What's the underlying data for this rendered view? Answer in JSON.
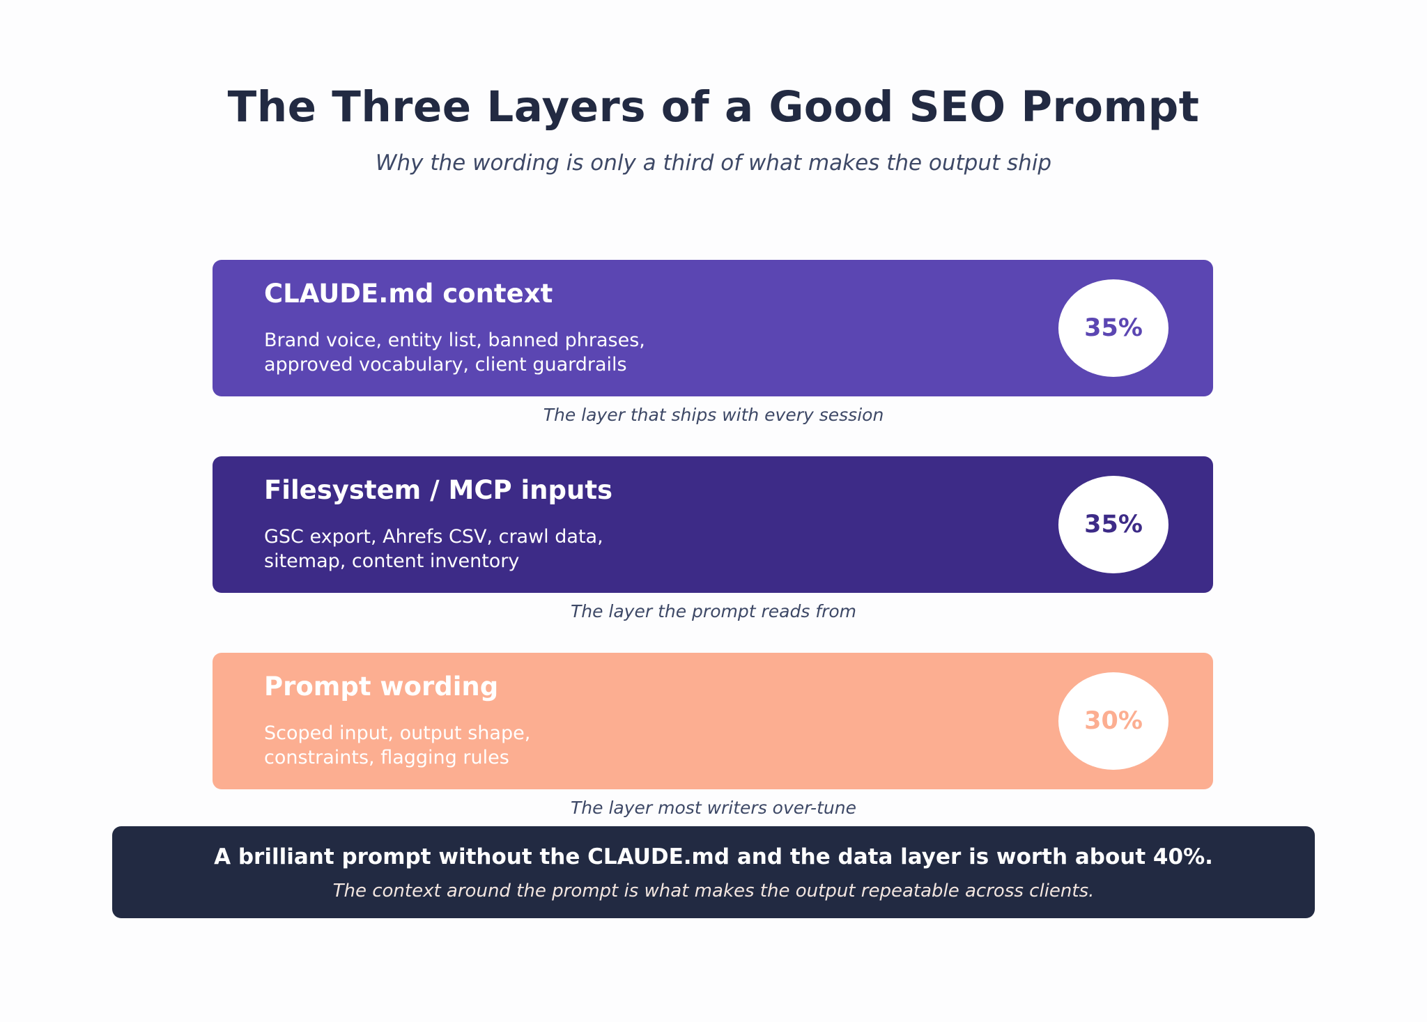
{
  "header": {
    "title": "The Three Layers of a Good SEO Prompt",
    "subtitle": "Why the wording is only a third of what makes the output ship"
  },
  "layers": [
    {
      "name": "CLAUDE.md context",
      "desc_line1": "Brand voice, entity list, banned phrases,",
      "desc_line2": "approved vocabulary, client guardrails",
      "percent": "35%",
      "caption": "The layer that ships with every session",
      "color": "#5b46b2"
    },
    {
      "name": "Filesystem / MCP inputs",
      "desc_line1": "GSC export, Ahrefs CSV, crawl data,",
      "desc_line2": "sitemap, content inventory",
      "percent": "35%",
      "caption": "The layer the prompt reads from",
      "color": "#3d2b87"
    },
    {
      "name": "Prompt wording",
      "desc_line1": "Scoped input, output shape,",
      "desc_line2": "constraints, flagging rules",
      "percent": "30%",
      "caption": "The layer most writers over-tune",
      "color": "#fcae91"
    }
  ],
  "summary": {
    "main": "A brilliant prompt without the CLAUDE.md and the data layer is worth about 40%.",
    "sub": "The context around the prompt is what makes the output repeatable across clients.",
    "color": "#222a42"
  }
}
